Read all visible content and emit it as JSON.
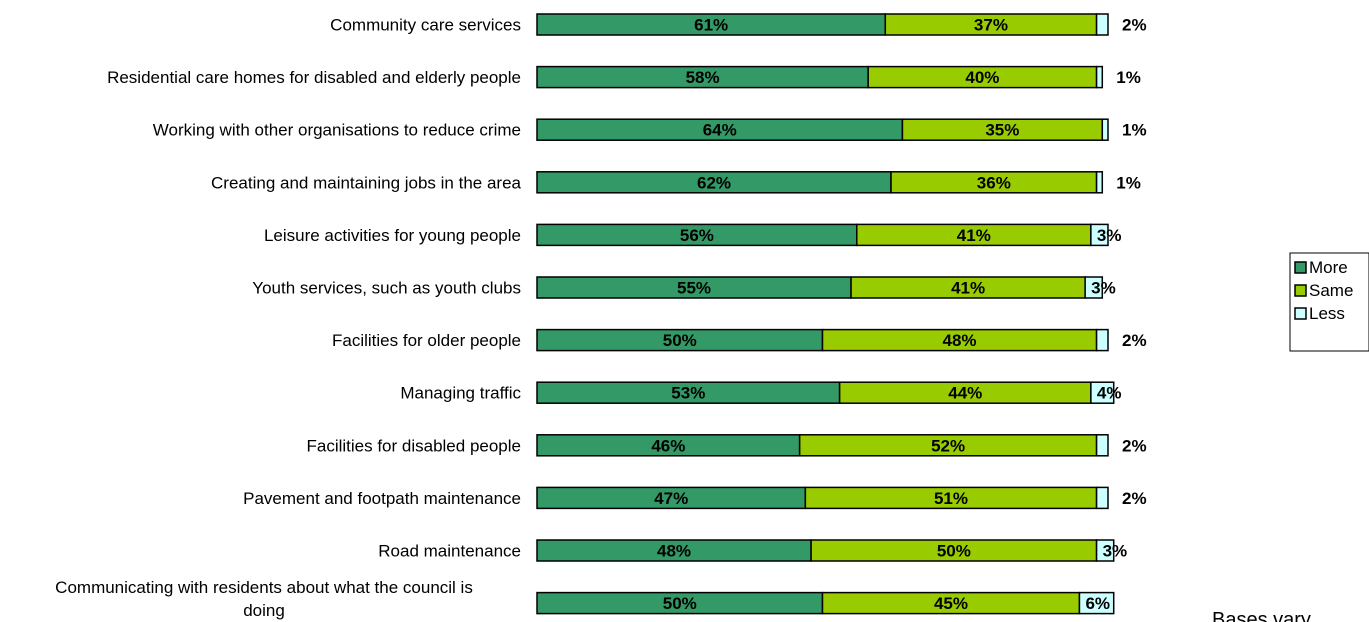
{
  "chart_data": {
    "type": "bar",
    "orientation": "horizontal",
    "stacked": true,
    "percent_stacked": true,
    "categories": [
      "Community care services",
      "Residential care homes for disabled and elderly people",
      "Working with other organisations to reduce crime",
      "Creating and maintaining jobs in the area",
      "Leisure activities for young people",
      "Youth services, such as youth clubs",
      "Facilities for older people",
      "Managing traffic",
      "Facilities for disabled people",
      "Pavement and footpath maintenance",
      "Road maintenance",
      "Communicating with residents about what the council is doing"
    ],
    "series": [
      {
        "name": "More",
        "color": "#339966",
        "values": [
          61,
          58,
          64,
          62,
          56,
          55,
          50,
          53,
          46,
          47,
          48,
          50
        ]
      },
      {
        "name": "Same",
        "color": "#99cc00",
        "values": [
          37,
          40,
          35,
          36,
          41,
          41,
          48,
          44,
          52,
          51,
          50,
          45
        ]
      },
      {
        "name": "Less",
        "color": "#ccffff",
        "values": [
          2,
          1,
          1,
          1,
          3,
          3,
          2,
          4,
          2,
          2,
          3,
          6
        ]
      }
    ],
    "value_labels": [
      [
        "61%",
        "37%",
        "2%"
      ],
      [
        "58%",
        "40%",
        "1%"
      ],
      [
        "64%",
        "35%",
        "1%"
      ],
      [
        "62%",
        "36%",
        "1%"
      ],
      [
        "56%",
        "41%",
        "3%"
      ],
      [
        "55%",
        "41%",
        "3%"
      ],
      [
        "50%",
        "48%",
        "2%"
      ],
      [
        "53%",
        "44%",
        "4%"
      ],
      [
        "46%",
        "52%",
        "2%"
      ],
      [
        "47%",
        "51%",
        "2%"
      ],
      [
        "48%",
        "50%",
        "3%"
      ],
      [
        "50%",
        "45%",
        "6%"
      ]
    ],
    "legend": {
      "position": "right",
      "entries": [
        "More",
        "Same",
        "Less"
      ]
    },
    "grid": false,
    "note": "Bases vary"
  }
}
